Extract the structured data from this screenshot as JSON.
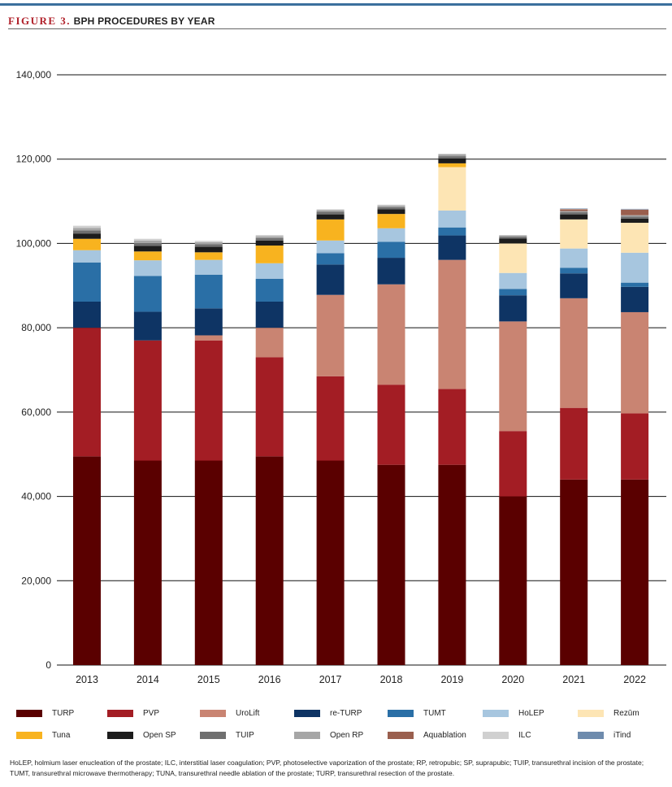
{
  "header": {
    "figure_label": "FIGURE 3.",
    "title": "BPH PROCEDURES BY YEAR"
  },
  "chart_data": {
    "type": "bar",
    "stacked": true,
    "categories": [
      "2013",
      "2014",
      "2015",
      "2016",
      "2017",
      "2018",
      "2019",
      "2020",
      "2021",
      "2022"
    ],
    "ylim": [
      0,
      145000
    ],
    "yticks": [
      0,
      20000,
      40000,
      60000,
      80000,
      100000,
      120000,
      140000
    ],
    "ytick_labels": [
      "0",
      "20,000",
      "40,000",
      "60,000",
      "80,000",
      "100,000",
      "120,000",
      "140,000"
    ],
    "grid": true,
    "legend_position": "bottom",
    "series": [
      {
        "name": "TURP",
        "color": "#5a0000",
        "values": [
          49500,
          48500,
          48500,
          49500,
          48500,
          47500,
          47500,
          40000,
          44000,
          44000
        ]
      },
      {
        "name": "PVP",
        "color": "#a31d24",
        "values": [
          30500,
          28500,
          28500,
          23500,
          20000,
          19000,
          18000,
          15500,
          17000,
          15700
        ]
      },
      {
        "name": "UroLift",
        "color": "#c98472",
        "values": [
          0,
          0,
          1200,
          7000,
          19300,
          23800,
          30600,
          26000,
          26000,
          24000
        ]
      },
      {
        "name": "re-TURP",
        "color": "#0e3464",
        "values": [
          6200,
          6800,
          6400,
          6200,
          7200,
          6300,
          5800,
          6200,
          5900,
          6000
        ]
      },
      {
        "name": "TUMT",
        "color": "#2a6fa6",
        "values": [
          9300,
          8500,
          8000,
          5400,
          2700,
          3800,
          1900,
          1500,
          1300,
          1000
        ]
      },
      {
        "name": "HoLEP",
        "color": "#a7c6df",
        "values": [
          2900,
          3700,
          3500,
          3700,
          3000,
          3200,
          4000,
          3800,
          4600,
          7100
        ]
      },
      {
        "name": "Rezūm",
        "color": "#fde5b4",
        "values": [
          0,
          0,
          0,
          0,
          0,
          0,
          10300,
          7000,
          6900,
          7100
        ]
      },
      {
        "name": "Tuna",
        "color": "#f8b31f",
        "values": [
          2700,
          2100,
          1800,
          4200,
          5000,
          3400,
          900,
          0,
          0,
          0
        ]
      },
      {
        "name": "Open SP",
        "color": "#1c1c1c",
        "values": [
          1200,
          1300,
          1300,
          1200,
          1200,
          1100,
          1200,
          1200,
          1200,
          1000
        ]
      },
      {
        "name": "TUIP",
        "color": "#6f6f6f",
        "values": [
          800,
          700,
          600,
          600,
          600,
          500,
          500,
          400,
          500,
          500
        ]
      },
      {
        "name": "Open RP",
        "color": "#a6a6a6",
        "values": [
          600,
          600,
          500,
          400,
          400,
          400,
          400,
          300,
          300,
          300
        ]
      },
      {
        "name": "Aquablation",
        "color": "#9a5f4e",
        "values": [
          0,
          0,
          0,
          0,
          0,
          0,
          0,
          0,
          400,
          1300
        ]
      },
      {
        "name": "ILC",
        "color": "#d0d0d0",
        "values": [
          500,
          400,
          300,
          300,
          200,
          200,
          200,
          100,
          100,
          100
        ]
      },
      {
        "name": "iTind",
        "color": "#6e8bad",
        "values": [
          0,
          0,
          0,
          0,
          0,
          0,
          0,
          0,
          100,
          100
        ]
      }
    ]
  },
  "footnote": "HoLEP, holmium laser enucleation of the prostate; ILC, interstitial laser coagulation; PVP, photoselective vaporization of the prostate; RP, retropubic; SP, suprapubic; TUIP, transurethral incision of the prostate; TUMT, transurethral microwave thermotherapy; TUNA, transurethral needle ablation of the prostate; TURP, transurethral resection of the prostate."
}
